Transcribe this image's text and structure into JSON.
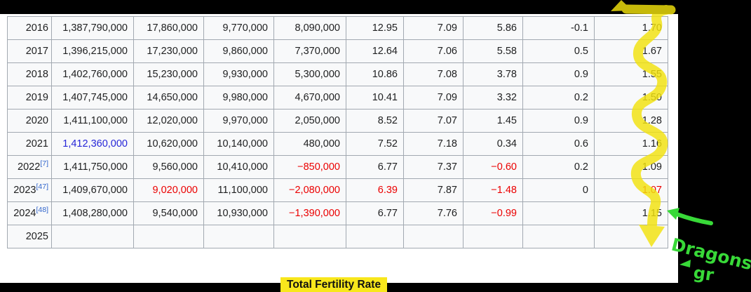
{
  "colors": {
    "marker_yellow": "#f2e20d",
    "marker_green": "#38d938",
    "highlight_yellow": "#f8e71c",
    "negative_red": "#eb0000",
    "population_link_blue": "#2626d8",
    "reference_blue": "#3366cc",
    "table_border": "#a2a9b1",
    "table_background": "#f8f9fa",
    "table_text": "#202122"
  },
  "table": {
    "rows": [
      {
        "year": "2016",
        "ref": "",
        "cells": [
          {
            "v": "1,387,790,000"
          },
          {
            "v": "17,860,000"
          },
          {
            "v": "9,770,000"
          },
          {
            "v": "8,090,000"
          },
          {
            "v": "12.95"
          },
          {
            "v": "7.09"
          },
          {
            "v": "5.86"
          },
          {
            "v": "-0.1"
          },
          {
            "v": "1.70"
          }
        ]
      },
      {
        "year": "2017",
        "ref": "",
        "cells": [
          {
            "v": "1,396,215,000"
          },
          {
            "v": "17,230,000"
          },
          {
            "v": "9,860,000"
          },
          {
            "v": "7,370,000"
          },
          {
            "v": "12.64"
          },
          {
            "v": "7.06"
          },
          {
            "v": "5.58"
          },
          {
            "v": "0.5"
          },
          {
            "v": "1.67"
          }
        ]
      },
      {
        "year": "2018",
        "ref": "",
        "cells": [
          {
            "v": "1,402,760,000"
          },
          {
            "v": "15,230,000"
          },
          {
            "v": "9,930,000"
          },
          {
            "v": "5,300,000"
          },
          {
            "v": "10.86"
          },
          {
            "v": "7.08"
          },
          {
            "v": "3.78"
          },
          {
            "v": "0.9"
          },
          {
            "v": "1.55"
          }
        ]
      },
      {
        "year": "2019",
        "ref": "",
        "cells": [
          {
            "v": "1,407,745,000"
          },
          {
            "v": "14,650,000"
          },
          {
            "v": "9,980,000"
          },
          {
            "v": "4,670,000"
          },
          {
            "v": "10.41"
          },
          {
            "v": "7.09"
          },
          {
            "v": "3.32"
          },
          {
            "v": "0.2"
          },
          {
            "v": "1.50"
          }
        ]
      },
      {
        "year": "2020",
        "ref": "",
        "cells": [
          {
            "v": "1,411,100,000"
          },
          {
            "v": "12,020,000"
          },
          {
            "v": "9,970,000"
          },
          {
            "v": "2,050,000"
          },
          {
            "v": "8.52"
          },
          {
            "v": "7.07"
          },
          {
            "v": "1.45"
          },
          {
            "v": "0.9"
          },
          {
            "v": "1.28"
          }
        ]
      },
      {
        "year": "2021",
        "ref": "",
        "cells": [
          {
            "v": "1,412,360,000",
            "c": "link",
            "link": true
          },
          {
            "v": "10,620,000"
          },
          {
            "v": "10,140,000"
          },
          {
            "v": "480,000"
          },
          {
            "v": "7.52"
          },
          {
            "v": "7.18"
          },
          {
            "v": "0.34"
          },
          {
            "v": "0.6"
          },
          {
            "v": "1.16"
          }
        ]
      },
      {
        "year": "2022",
        "ref": "[7]",
        "cells": [
          {
            "v": "1,411,750,000"
          },
          {
            "v": "9,560,000"
          },
          {
            "v": "10,410,000"
          },
          {
            "v": "−850,000",
            "c": "red"
          },
          {
            "v": "6.77"
          },
          {
            "v": "7.37"
          },
          {
            "v": "−0.60",
            "c": "red"
          },
          {
            "v": "0.2"
          },
          {
            "v": "1.09"
          }
        ]
      },
      {
        "year": "2023",
        "ref": "[47]",
        "cells": [
          {
            "v": "1,409,670,000"
          },
          {
            "v": "9,020,000",
            "c": "red"
          },
          {
            "v": "11,100,000"
          },
          {
            "v": "−2,080,000",
            "c": "red"
          },
          {
            "v": "6.39",
            "c": "red"
          },
          {
            "v": "7.87"
          },
          {
            "v": "−1.48",
            "c": "red"
          },
          {
            "v": "0"
          },
          {
            "v": "1.07",
            "c": "red"
          }
        ]
      },
      {
        "year": "2024",
        "ref": "[48]",
        "cells": [
          {
            "v": "1,408,280,000"
          },
          {
            "v": "9,540,000"
          },
          {
            "v": "10,930,000"
          },
          {
            "v": "−1,390,000",
            "c": "red"
          },
          {
            "v": "6.77"
          },
          {
            "v": "7.76"
          },
          {
            "v": "−0.99",
            "c": "red"
          },
          {
            "v": ""
          },
          {
            "v": "1.15"
          }
        ]
      },
      {
        "year": "2025",
        "ref": "",
        "cells": [
          {
            "v": ""
          },
          {
            "v": ""
          },
          {
            "v": ""
          },
          {
            "v": ""
          },
          {
            "v": ""
          },
          {
            "v": ""
          },
          {
            "v": ""
          },
          {
            "v": ""
          },
          {
            "v": ""
          }
        ]
      }
    ]
  },
  "caption": {
    "text": "Total Fertility Rate"
  },
  "annotations": {
    "handwriting_line1": "Dragons",
    "handwriting_line2": "gr",
    "yellow_marker": "squiggly arrow down total-fertility-rate column, arrowheads at top and bottom",
    "green_marker": "arrow pointing left at 2024 TFR value 1.15"
  }
}
